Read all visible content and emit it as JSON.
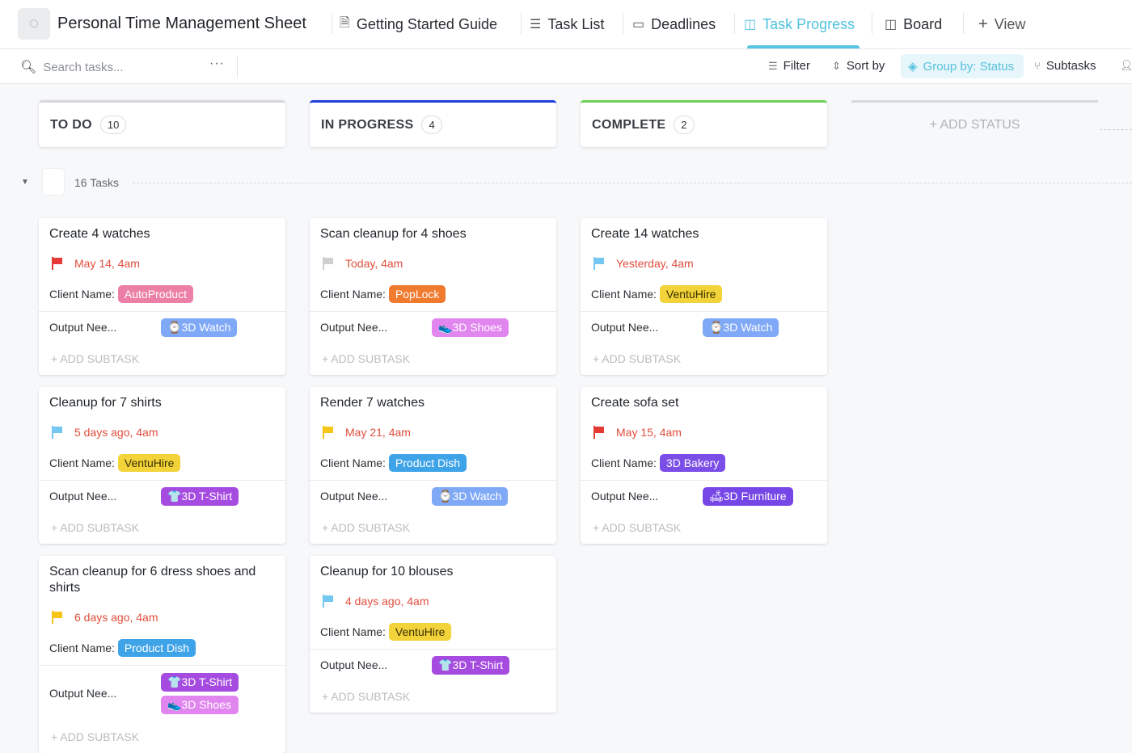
{
  "header": {
    "title": "Personal Time Management Sheet",
    "tabs": [
      {
        "label": "Getting Started Guide",
        "icon": "doc-icon"
      },
      {
        "label": "Task List",
        "icon": "list-icon"
      },
      {
        "label": "Deadlines",
        "icon": "calendar-icon"
      },
      {
        "label": "Task Progress",
        "icon": "board-icon",
        "active": true
      },
      {
        "label": "Board",
        "icon": "board-icon"
      },
      {
        "label": "View",
        "icon": "plus-icon"
      }
    ]
  },
  "toolbar": {
    "search_placeholder": "Search tasks...",
    "more": "···",
    "filter": "Filter",
    "sort": "Sort by",
    "group": "Group by: Status",
    "subtasks": "Subtasks"
  },
  "columns": [
    {
      "name": "TO DO",
      "count": "10",
      "color": "#d6d8dc"
    },
    {
      "name": "IN PROGRESS",
      "count": "4",
      "color": "#1f3fd9"
    },
    {
      "name": "COMPLETE",
      "count": "2",
      "color": "#6fcf57"
    }
  ],
  "add_status": "+ ADD STATUS",
  "group": {
    "count_label": "16 Tasks"
  },
  "labels": {
    "client": "Client Name:",
    "output": "Output Nee...",
    "add_subtask": "+ ADD SUBTASK"
  },
  "cards": [
    {
      "col": 0,
      "title": "Create 4 watches",
      "date": "May 14, 4am",
      "flag": "#e53935",
      "client": "AutoProduct",
      "client_color": "#ec7fa5",
      "outputs": [
        {
          "label": "⌚3D Watch",
          "color": "#7fa8f7"
        }
      ]
    },
    {
      "col": 0,
      "title": "Cleanup for 7 shirts",
      "date": "5 days ago, 4am",
      "flag": "#74c7f0",
      "client": "VentuHire",
      "client_color": "#f3d33a",
      "outputs": [
        {
          "label": "👕3D T-Shirt",
          "color": "#a64be0"
        }
      ]
    },
    {
      "col": 0,
      "title": "Scan cleanup for 6 dress shoes and shirts",
      "date": "6 days ago, 4am",
      "flag": "#f5c518",
      "client": "Product Dish",
      "client_color": "#3fa3e8",
      "outputs": [
        {
          "label": "👕3D T-Shirt",
          "color": "#a64be0"
        },
        {
          "label": "👟3D Shoes",
          "color": "#e185ef"
        }
      ]
    },
    {
      "col": 1,
      "title": "Scan cleanup for 4 shoes",
      "date": "Today, 4am",
      "flag": "#cfcfcf",
      "client": "PopLock",
      "client_color": "#f07a2e",
      "outputs": [
        {
          "label": "👟3D Shoes",
          "color": "#e185ef"
        }
      ]
    },
    {
      "col": 1,
      "title": "Render 7 watches",
      "date": "May 21, 4am",
      "flag": "#f5c518",
      "client": "Product Dish",
      "client_color": "#3fa3e8",
      "outputs": [
        {
          "label": "⌚3D Watch",
          "color": "#7fa8f7"
        }
      ]
    },
    {
      "col": 1,
      "title": "Cleanup for 10 blouses",
      "date": "4 days ago, 4am",
      "flag": "#74c7f0",
      "client": "VentuHire",
      "client_color": "#f3d33a",
      "outputs": [
        {
          "label": "👕3D T-Shirt",
          "color": "#a64be0"
        }
      ]
    },
    {
      "col": 2,
      "title": "Create 14 watches",
      "date": "Yesterday, 4am",
      "flag": "#74c7f0",
      "client": "VentuHire",
      "client_color": "#f3d33a",
      "outputs": [
        {
          "label": "⌚3D Watch",
          "color": "#7fa8f7"
        }
      ]
    },
    {
      "col": 2,
      "title": "Create sofa set",
      "date": "May 15, 4am",
      "flag": "#e53935",
      "client": "3D Bakery",
      "client_color": "#7b4ee8",
      "outputs": [
        {
          "label": "🛋3D Furniture",
          "color": "#7647e6"
        }
      ]
    }
  ]
}
